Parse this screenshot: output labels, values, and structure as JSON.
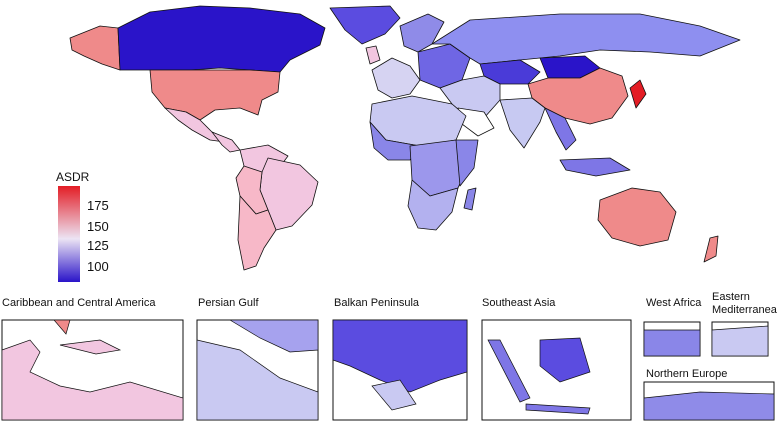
{
  "map": {
    "colors": {
      "ocean": "#ffffff",
      "stroke": "#111111",
      "scale_low": "#2a14c9",
      "scale_mid": "#ece4f4",
      "scale_high": "#e31d25"
    },
    "legend": {
      "title": "ASDR",
      "ticks": [
        {
          "label": "175",
          "value": 175
        },
        {
          "label": "150",
          "value": 150
        },
        {
          "label": "125",
          "value": 125
        },
        {
          "label": "100",
          "value": 100
        }
      ],
      "range": [
        92,
        188
      ]
    },
    "insets": [
      {
        "title": "Caribbean and Central America"
      },
      {
        "title": "Persian Gulf"
      },
      {
        "title": "Balkan Peninsula"
      },
      {
        "title": "Southeast Asia"
      },
      {
        "title": "West Africa"
      },
      {
        "title": "Eastern\nMediterranea"
      },
      {
        "title": "Northern Europe"
      }
    ]
  }
}
